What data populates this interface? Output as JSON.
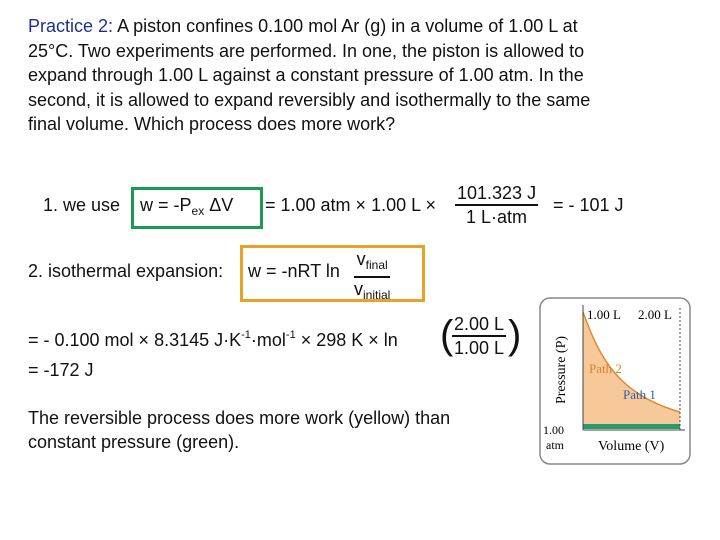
{
  "problem": {
    "label": "Practice 2:",
    "lines": [
      "A piston confines 0.100 mol Ar (g) in a volume of 1.00 L at",
      "25°C. Two experiments are performed. In one, the piston is allowed to",
      "expand through 1.00 L against a constant pressure of 1.00 atm. In the",
      "second, it is allowed to expand reversibly and isothermally to the same",
      "final volume. Which process does more work?"
    ]
  },
  "step1": {
    "lead": "1. we use",
    "formula": "w  =  -P",
    "formula_sub": "ex",
    "formula_end": " ΔV",
    "middle": "= 1.00 atm × 1.00 L ×",
    "numerator": "101.323 J",
    "denominator": "1 L·atm",
    "result": "=  - 101 J"
  },
  "step2": {
    "lead": "2. isothermal expansion:",
    "formula": "w = -nRT ln",
    "numerator": "v",
    "numerator_sub": "final",
    "denominator": "v",
    "denominator_sub": "initial"
  },
  "step3": {
    "text1": "=  - 0.100 mol × 8.3145 J·K",
    "sup1": "-1",
    "text2": "·mol",
    "sup2": "-1",
    "text3": " × 298 K × ln",
    "numerator": "2.00 L",
    "denominator": "1.00 L"
  },
  "step4": {
    "text": "=  -172 J"
  },
  "conclusion": [
    "The reversible process does more work (yellow) than",
    "constant pressure (green)."
  ],
  "figure": {
    "v1": "1.00 L",
    "v2": "2.00 L",
    "y_axis": "Pressure (P)",
    "x_axis": "Volume (V)",
    "path2": "Path 2",
    "path1": "Path 1",
    "p_value": "1.00",
    "p_unit": "atm"
  }
}
